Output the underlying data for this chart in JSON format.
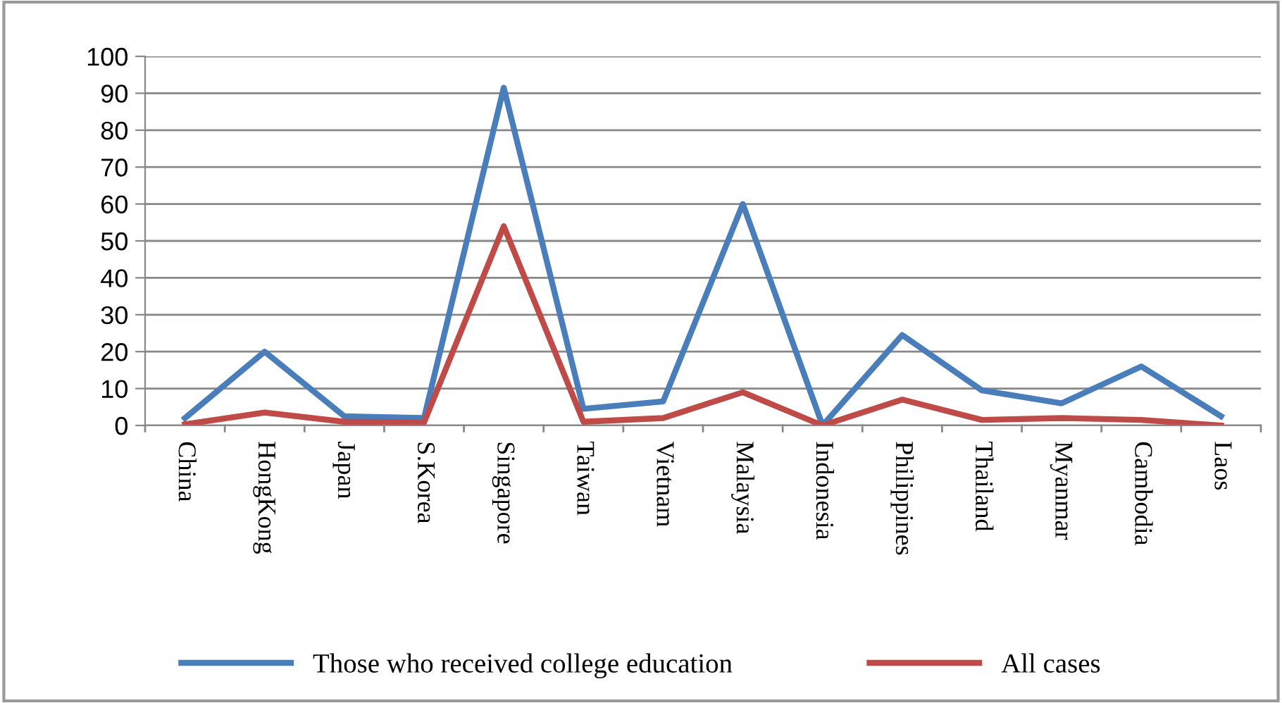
{
  "chart_data": {
    "type": "line",
    "categories": [
      "China",
      "HongKong",
      "Japan",
      "S.Korea",
      "Singapore",
      "Taiwan",
      "Vietnam",
      "Malaysia",
      "Indonesia",
      "Philippines",
      "Thailand",
      "Myanmar",
      "Cambodia",
      "Laos"
    ],
    "series": [
      {
        "name": "Those who received college education",
        "color": "#4a7ebb",
        "values": [
          2,
          20,
          2.5,
          2,
          91.5,
          4.5,
          6.5,
          60,
          0,
          24.5,
          9.5,
          6,
          16,
          2.5
        ]
      },
      {
        "name": "All cases",
        "color": "#be4b48",
        "values": [
          0.3,
          3.5,
          1,
          0.8,
          54,
          1,
          2,
          9,
          0,
          7,
          1.5,
          2,
          1.5,
          0
        ]
      }
    ],
    "ylim": [
      0,
      100
    ],
    "yticks": [
      0,
      10,
      20,
      30,
      40,
      50,
      60,
      70,
      80,
      90,
      100
    ],
    "grid": "y",
    "legend": "bottom",
    "marker": "none",
    "line_style": "solid"
  }
}
